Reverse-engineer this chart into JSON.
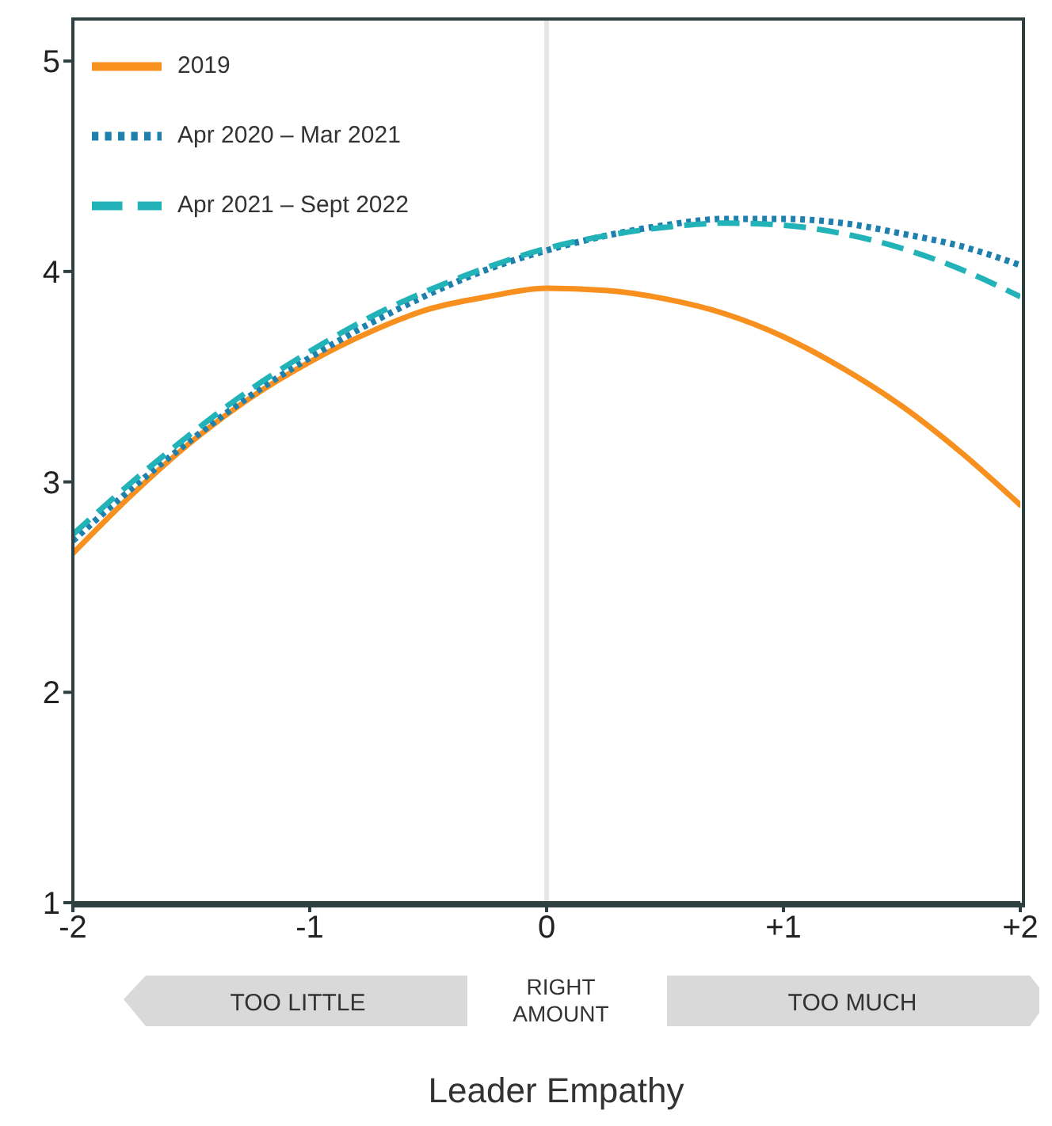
{
  "chart_data": {
    "type": "line",
    "xlabel": "Leader Empathy",
    "x": [
      -2,
      -1.75,
      -1.5,
      -1.25,
      -1,
      -0.75,
      -0.5,
      -0.25,
      0,
      0.25,
      0.5,
      0.75,
      1,
      1.25,
      1.5,
      1.75,
      2
    ],
    "xlim": [
      -2,
      2
    ],
    "xticks": [
      -2,
      -1,
      0,
      {
        "value": 1,
        "label": "+1"
      },
      {
        "value": 2,
        "label": "+2"
      }
    ],
    "ylim": [
      1,
      5.2
    ],
    "yticks": [
      1,
      2,
      3,
      4,
      5
    ],
    "series": [
      {
        "name": "2019",
        "color": "#f7901e",
        "line_style": "solid",
        "values": [
          2.66,
          2.94,
          3.19,
          3.4,
          3.57,
          3.71,
          3.82,
          3.88,
          3.92,
          3.91,
          3.87,
          3.8,
          3.69,
          3.54,
          3.36,
          3.14,
          2.89
        ]
      },
      {
        "name": "Apr 2020 – Mar 2021",
        "color": "#1f7fad",
        "line_style": "dotted",
        "values": [
          2.72,
          2.97,
          3.2,
          3.41,
          3.59,
          3.75,
          3.89,
          4.01,
          4.1,
          4.17,
          4.22,
          4.25,
          4.25,
          4.23,
          4.18,
          4.12,
          4.03
        ]
      },
      {
        "name": "Apr 2021 – Sept 2022",
        "color": "#22b3b8",
        "line_style": "dashed",
        "values": [
          2.75,
          3.0,
          3.23,
          3.44,
          3.62,
          3.78,
          3.91,
          4.02,
          4.11,
          4.17,
          4.21,
          4.23,
          4.22,
          4.18,
          4.11,
          4.01,
          3.88
        ]
      }
    ],
    "ref_lines": [
      {
        "axis": "x",
        "value": 0,
        "color": "#e6e6e6"
      }
    ],
    "annotations": [
      "TOO LITTLE",
      "RIGHT AMOUNT",
      "TOO MUCH"
    ],
    "legend": "top left",
    "grid": false
  }
}
